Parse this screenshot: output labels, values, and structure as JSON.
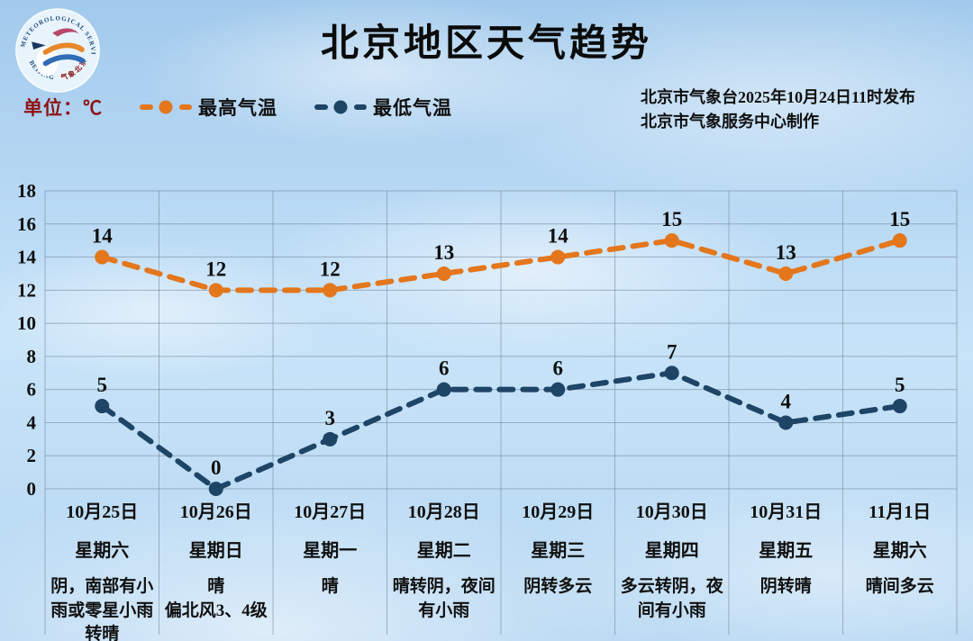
{
  "header": {
    "title": "北京地区天气趋势",
    "unit_label": "单位：℃",
    "publisher_line1": "北京市气象台2025年10月24日11时发布",
    "publisher_line2": "北京市气象服务中心制作",
    "logo_ring_text_top": "METEOROLOGICAL SERVICE",
    "logo_ring_text_bottom_left": "BEIJING",
    "logo_ring_text_bottom_right": "气象北京"
  },
  "legend": {
    "items": [
      {
        "label": "最高气温",
        "color": "#E4761C"
      },
      {
        "label": "最低气温",
        "color": "#1E4466"
      }
    ]
  },
  "chart_data": {
    "type": "line",
    "title": "北京地区天气趋势",
    "ylabel": "℃",
    "xlabel": "",
    "ylim": [
      0,
      18
    ],
    "ytick_step": 2,
    "grid": true,
    "legend_position": "top-left",
    "categories": [
      "10月25日",
      "10月26日",
      "10月27日",
      "10月28日",
      "10月29日",
      "10月30日",
      "10月31日",
      "11月1日"
    ],
    "weekdays": [
      "星期六",
      "星期日",
      "星期一",
      "星期二",
      "星期三",
      "星期四",
      "星期五",
      "星期六"
    ],
    "weather": [
      [
        "阴，南部有小雨或零星小雨转晴"
      ],
      [
        "晴",
        "偏北风3、4级"
      ],
      [
        "晴"
      ],
      [
        "晴转阴，夜间有小雨"
      ],
      [
        "阴转多云"
      ],
      [
        "多云转阴，夜间有小雨"
      ],
      [
        "阴转晴"
      ],
      [
        "晴间多云"
      ]
    ],
    "series": [
      {
        "name": "最高气温",
        "color": "#E4761C",
        "values": [
          14,
          12,
          12,
          13,
          14,
          15,
          13,
          15
        ]
      },
      {
        "name": "最低气温",
        "color": "#1E4466",
        "values": [
          5,
          0,
          3,
          6,
          6,
          7,
          4,
          5
        ]
      }
    ],
    "colors": {
      "grid": "rgba(110,130,150,0.55)",
      "tick_text": "#101010",
      "point_label": "#101010"
    }
  }
}
